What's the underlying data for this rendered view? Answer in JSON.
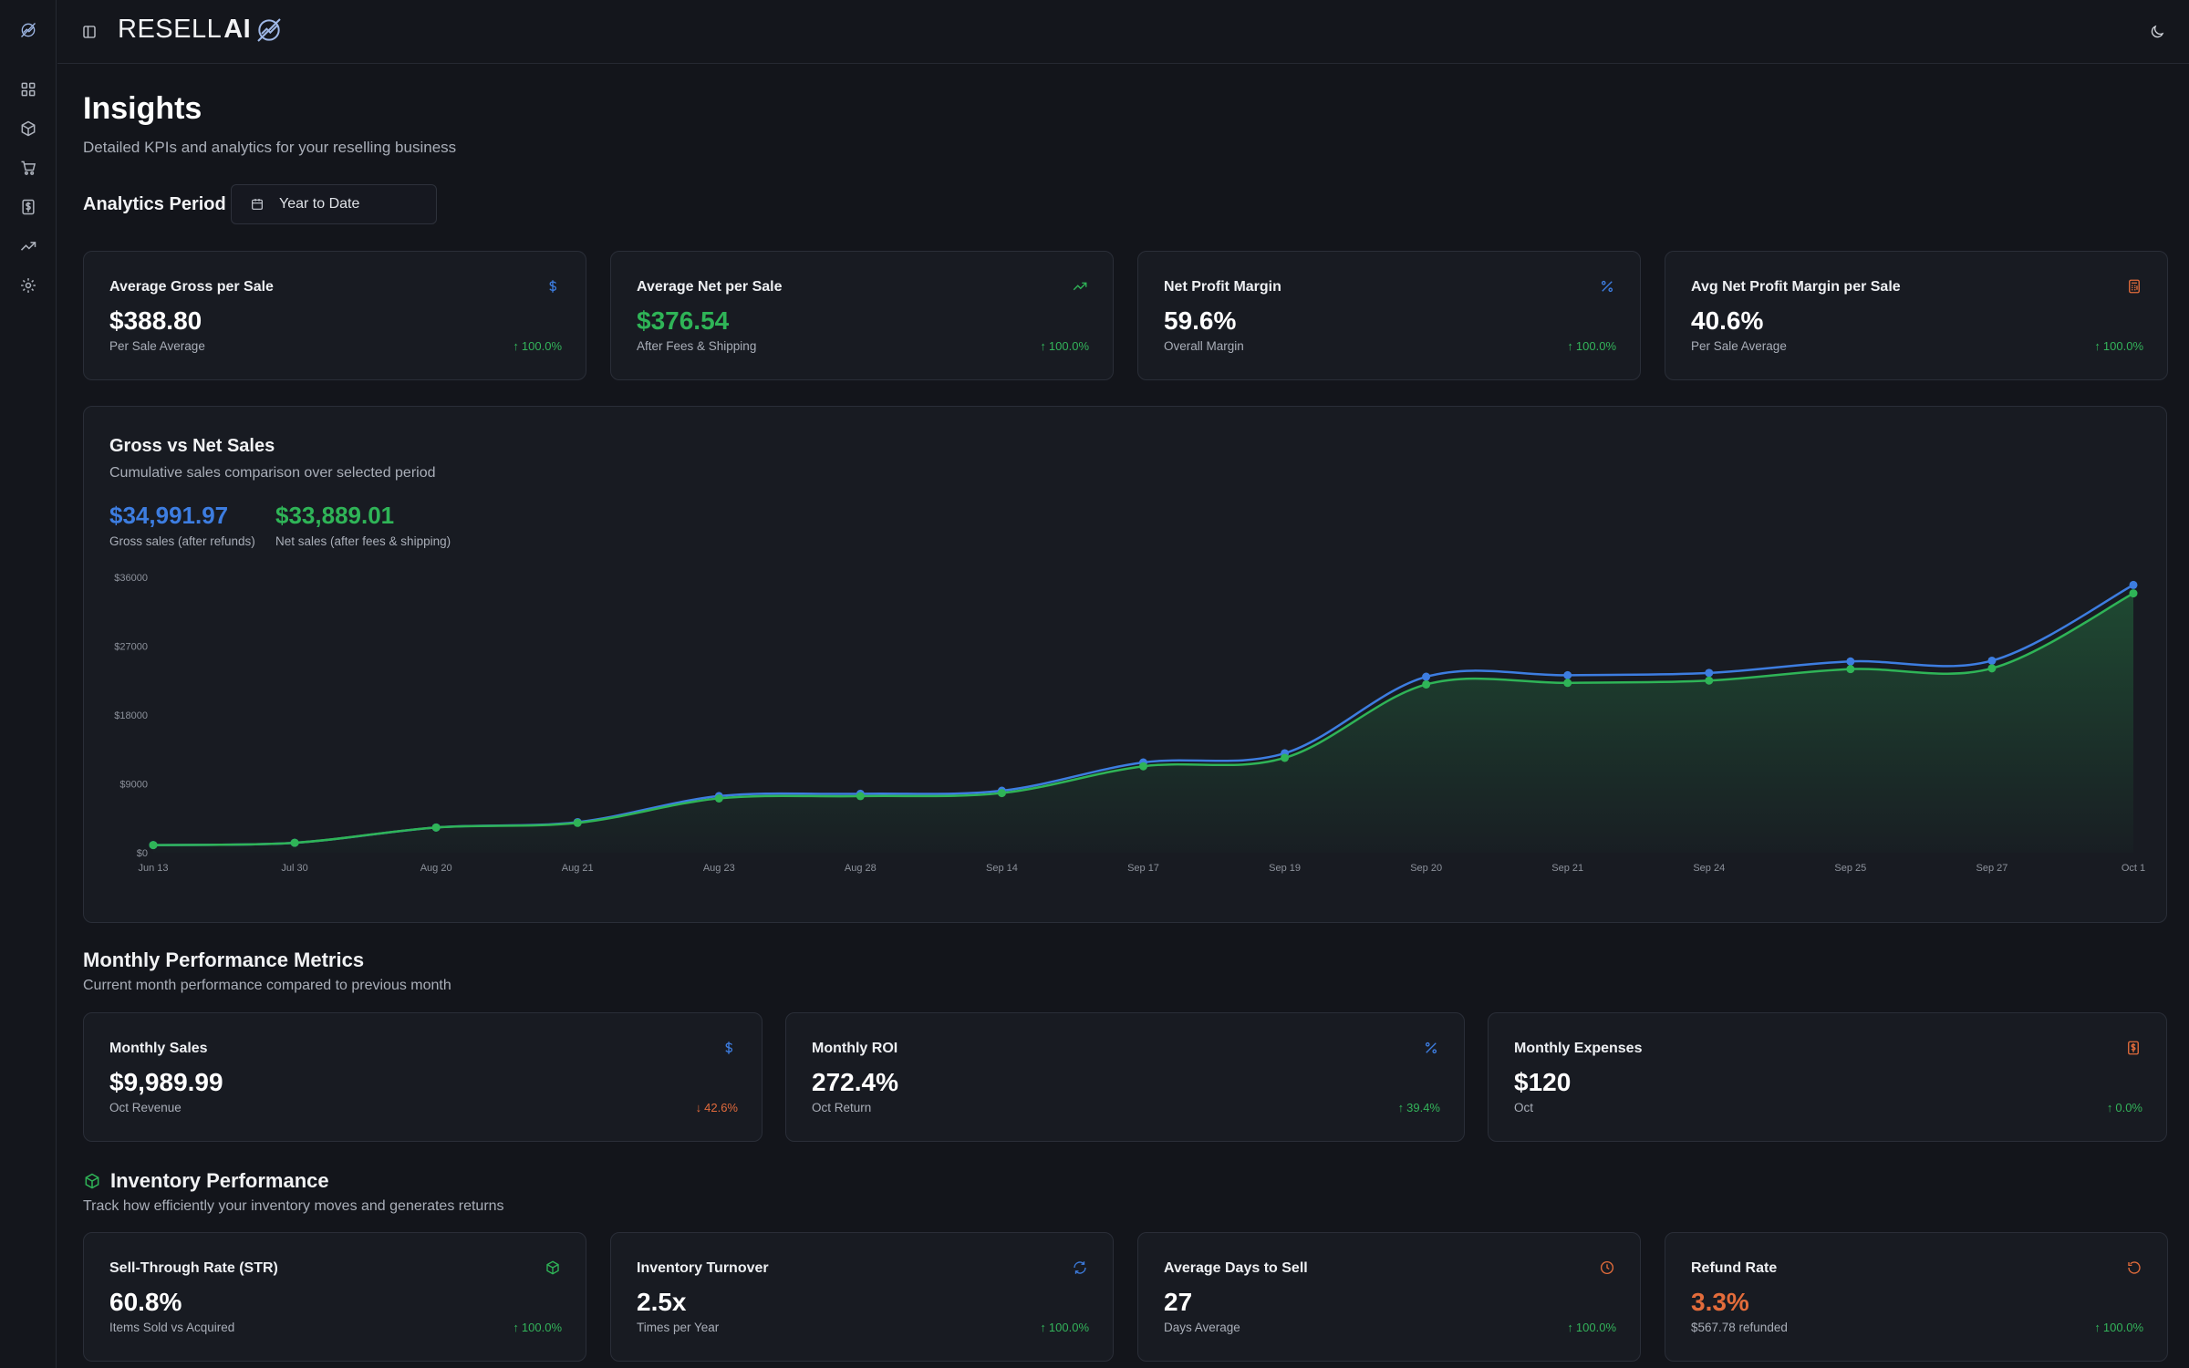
{
  "brand": {
    "name_regular": "RESELL ",
    "name_bold": "AI"
  },
  "page": {
    "title": "Insights",
    "subtitle": "Detailed KPIs and analytics for your reselling business"
  },
  "period": {
    "label": "Analytics Period",
    "value": "Year to Date"
  },
  "sidebar": {
    "items": [
      {
        "name": "dashboard",
        "icon": "grid-icon"
      },
      {
        "name": "inventory",
        "icon": "box-icon"
      },
      {
        "name": "sales",
        "icon": "cart-icon"
      },
      {
        "name": "expenses",
        "icon": "dollar-receipt-icon"
      },
      {
        "name": "insights",
        "icon": "trending-up-icon"
      },
      {
        "name": "settings",
        "icon": "gear-icon"
      }
    ]
  },
  "kpis_top": [
    {
      "title": "Average Gross per Sale",
      "value": "$388.80",
      "caption": "Per Sale Average",
      "trend": "100.0%",
      "trend_dir": "up",
      "icon": "dollar-icon",
      "icon_color": "#3d7de0",
      "value_color": "white"
    },
    {
      "title": "Average Net per Sale",
      "value": "$376.54",
      "caption": "After Fees & Shipping",
      "trend": "100.0%",
      "trend_dir": "up",
      "icon": "trending-up-icon",
      "icon_color": "#2fb457",
      "value_color": "green"
    },
    {
      "title": "Net Profit Margin",
      "value": "59.6%",
      "caption": "Overall Margin",
      "trend": "100.0%",
      "trend_dir": "up",
      "icon": "percent-icon",
      "icon_color": "#3d7de0",
      "value_color": "white"
    },
    {
      "title": "Avg Net Profit Margin per Sale",
      "value": "40.6%",
      "caption": "Per Sale Average",
      "trend": "100.0%",
      "trend_dir": "up",
      "icon": "calculator-icon",
      "icon_color": "#e36c3b",
      "value_color": "white"
    }
  ],
  "gross_net": {
    "title": "Gross vs Net Sales",
    "subtitle": "Cumulative sales comparison over selected period",
    "gross_total": "$34,991.97",
    "gross_caption": "Gross sales (after refunds)",
    "net_total": "$33,889.01",
    "net_caption": "Net sales (after fees & shipping)"
  },
  "chart_data": {
    "type": "area",
    "categories": [
      "Jun 13",
      "Jul 30",
      "Aug 20",
      "Aug 21",
      "Aug 23",
      "Aug 28",
      "Sep 14",
      "Sep 17",
      "Sep 19",
      "Sep 20",
      "Sep 21",
      "Sep 24",
      "Sep 25",
      "Sep 27",
      "Oct 1"
    ],
    "y_ticks": [
      "$0",
      "$9000",
      "$18000",
      "$27000",
      "$36000"
    ],
    "ylim": [
      0,
      36000
    ],
    "grid": false,
    "series": [
      {
        "color": "#3d7de0",
        "values": [
          1000,
          1300,
          3300,
          4000,
          7400,
          7700,
          8100,
          11800,
          13000,
          23000,
          23200,
          23500,
          25000,
          25100,
          35000
        ]
      },
      {
        "color": "#2fb457",
        "values": [
          1000,
          1300,
          3300,
          3900,
          7100,
          7400,
          7800,
          11300,
          12400,
          22000,
          22200,
          22500,
          24000,
          24100,
          33900
        ]
      }
    ]
  },
  "monthly": {
    "title": "Monthly Performance Metrics",
    "subtitle": "Current month performance compared to previous month",
    "cards": [
      {
        "title": "Monthly Sales",
        "value": "$9,989.99",
        "caption": "Oct Revenue",
        "trend": "42.6%",
        "trend_dir": "down",
        "icon": "dollar-icon",
        "icon_color": "#3d7de0",
        "value_color": "white"
      },
      {
        "title": "Monthly ROI",
        "value": "272.4%",
        "caption": "Oct Return",
        "trend": "39.4%",
        "trend_dir": "up",
        "icon": "percent-icon",
        "icon_color": "#3d7de0",
        "value_color": "white"
      },
      {
        "title": "Monthly Expenses",
        "value": "$120",
        "caption": "Oct",
        "trend": "0.0%",
        "trend_dir": "up",
        "icon": "dollar-receipt-icon",
        "icon_color": "#e36c3b",
        "value_color": "white"
      }
    ]
  },
  "inventory": {
    "title": "Inventory Performance",
    "subtitle": "Track how efficiently your inventory moves and generates returns",
    "cards": [
      {
        "title": "Sell-Through Rate (STR)",
        "value": "60.8%",
        "caption": "Items Sold vs Acquired",
        "trend": "100.0%",
        "trend_dir": "up",
        "icon": "box-icon",
        "icon_color": "#2fb457",
        "value_color": "white"
      },
      {
        "title": "Inventory Turnover",
        "value": "2.5x",
        "caption": "Times per Year",
        "trend": "100.0%",
        "trend_dir": "up",
        "icon": "refresh-icon",
        "icon_color": "#3d7de0",
        "value_color": "white"
      },
      {
        "title": "Average Days to Sell",
        "value": "27",
        "caption": "Days Average",
        "trend": "100.0%",
        "trend_dir": "up",
        "icon": "clock-icon",
        "icon_color": "#e36c3b",
        "value_color": "white"
      },
      {
        "title": "Refund Rate",
        "value": "3.3%",
        "caption": "$567.78 refunded",
        "trend": "100.0%",
        "trend_dir": "up",
        "icon": "undo-icon",
        "icon_color": "#e36c3b",
        "value_color": "orange"
      }
    ]
  }
}
